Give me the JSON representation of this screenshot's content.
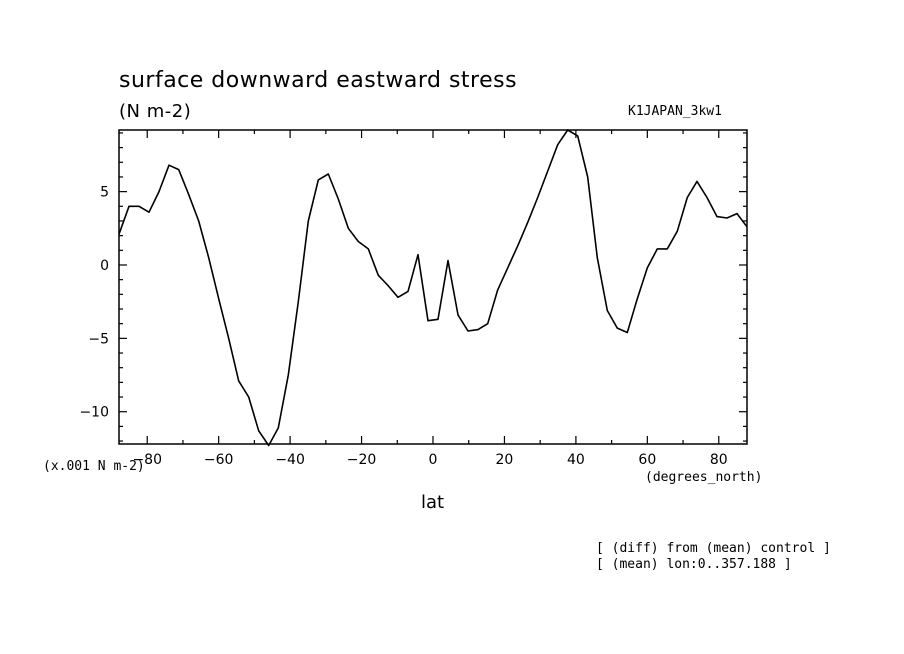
{
  "chart_data": {
    "type": "line",
    "title": "surface downward eastward stress",
    "units": "(N m-2)",
    "run_label": "K1JAPAN_3kw1",
    "scale_label": "(x.001 N m-2)",
    "xlabel": "lat",
    "x_units": "(degrees_north)",
    "notes": [
      "[ (diff) from (mean) control ]",
      "[ (mean) lon:0..357.188 ]"
    ],
    "xlim": [
      -87.9,
      87.9
    ],
    "ylim": [
      -12.2,
      9.2
    ],
    "x_ticks": [
      -80,
      -60,
      -40,
      -20,
      0,
      20,
      40,
      60,
      80
    ],
    "y_ticks": [
      5,
      0,
      -5,
      -10
    ],
    "grid": false,
    "series": [
      {
        "x": [
          -87.9,
          -85.1,
          -82.3,
          -79.5,
          -76.7,
          -73.9,
          -71.2,
          -68.4,
          -65.6,
          -62.8,
          -60.0,
          -57.2,
          -54.4,
          -51.6,
          -48.8,
          -46.0,
          -43.3,
          -40.5,
          -37.7,
          -34.9,
          -32.1,
          -29.3,
          -26.5,
          -23.7,
          -20.9,
          -18.1,
          -15.3,
          -12.6,
          -9.8,
          -7.0,
          -4.2,
          -1.4,
          1.4,
          4.2,
          7.0,
          9.8,
          12.6,
          15.3,
          18.1,
          20.9,
          23.7,
          26.5,
          29.3,
          32.1,
          34.9,
          37.7,
          40.5,
          43.3,
          46.0,
          48.8,
          51.6,
          54.4,
          57.2,
          60.0,
          62.8,
          65.6,
          68.4,
          71.2,
          73.9,
          76.7,
          79.5,
          82.3,
          85.1,
          87.9
        ],
        "y": [
          2.1,
          4.0,
          4.0,
          3.6,
          5.0,
          6.8,
          6.5,
          4.8,
          3.0,
          0.5,
          -2.3,
          -5.0,
          -7.9,
          -9.0,
          -11.3,
          -12.3,
          -11.1,
          -7.5,
          -2.5,
          3.0,
          5.8,
          6.2,
          4.5,
          2.5,
          1.6,
          1.1,
          -0.7,
          -1.4,
          -2.2,
          -1.8,
          0.7,
          -3.8,
          -3.7,
          0.3,
          -3.4,
          -4.5,
          -4.4,
          -4.0,
          -1.7,
          -0.2,
          1.3,
          2.9,
          4.6,
          6.4,
          8.2,
          9.2,
          8.8,
          6.0,
          0.5,
          -3.1,
          -4.3,
          -4.6,
          -2.3,
          -0.2,
          1.1,
          1.1,
          2.3,
          4.6,
          5.7,
          4.6,
          3.3,
          3.2,
          3.5,
          2.6
        ]
      }
    ]
  }
}
